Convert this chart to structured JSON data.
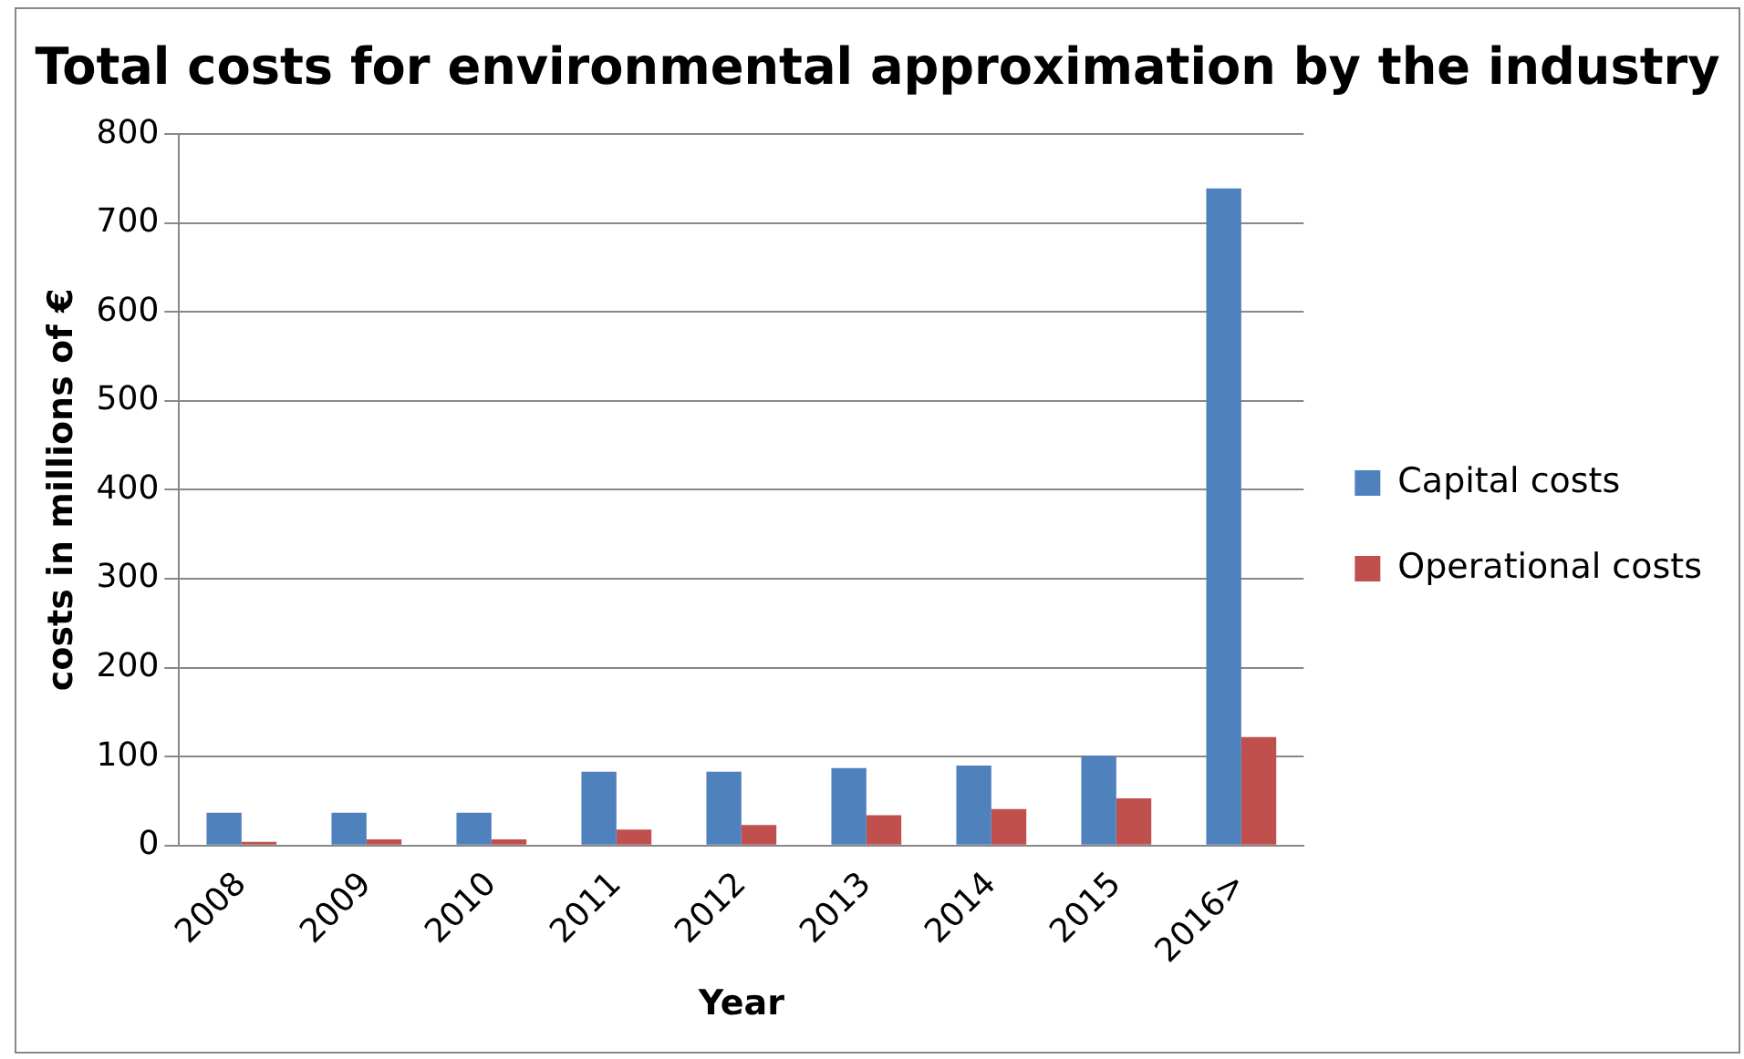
{
  "chart_data": {
    "type": "bar",
    "title": "Total costs for environmental approximation by the industry",
    "xlabel": "Year",
    "ylabel": "costs in millions of €",
    "categories": [
      "2008",
      "2009",
      "2010",
      "2011",
      "2012",
      "2013",
      "2014",
      "2015",
      "2016>"
    ],
    "series": [
      {
        "name": "Capital costs",
        "color": "#4f81bd",
        "values": [
          37,
          37,
          37,
          83,
          83,
          87,
          90,
          101,
          739
        ]
      },
      {
        "name": "Operational costs",
        "color": "#c0504d",
        "values": [
          4,
          7,
          7,
          18,
          23,
          34,
          41,
          53,
          122
        ]
      }
    ],
    "ylim": [
      0,
      800
    ],
    "yticks": [
      0,
      100,
      200,
      300,
      400,
      500,
      600,
      700,
      800
    ],
    "grid": "y",
    "legend": "right"
  }
}
